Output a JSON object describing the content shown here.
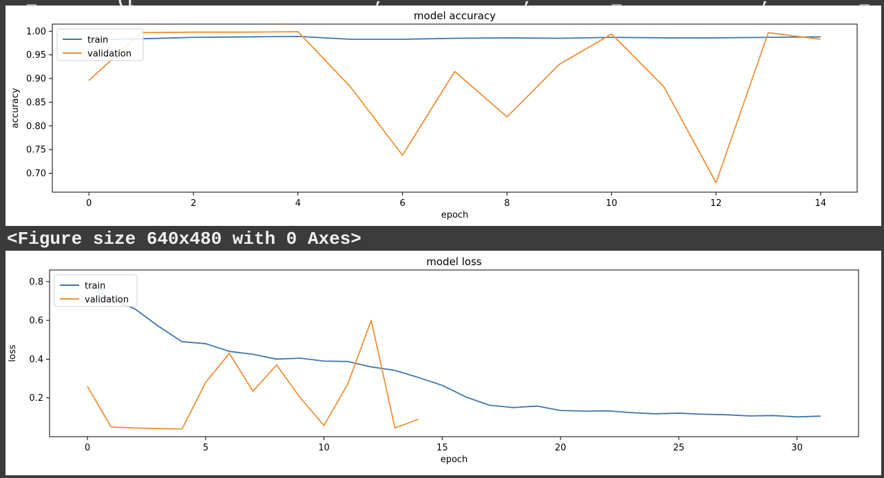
{
  "header": {
    "cropped_code": "  _        ([                        ,              ,        _              ,         _          ,                    _        ])"
  },
  "figure_text": "<Figure size 640x480 with 0 Axes>",
  "colors": {
    "train": "#3d76ab",
    "validation": "#ef8f35",
    "axis": "#000000"
  },
  "chart_data": [
    {
      "type": "line",
      "title": "model accuracy",
      "xlabel": "epoch",
      "ylabel": "accuracy",
      "xlim": [
        -0.7,
        14.7
      ],
      "ylim": [
        0.66,
        1.015
      ],
      "xticks": [
        0,
        2,
        4,
        6,
        8,
        10,
        12,
        14
      ],
      "yticks": [
        0.7,
        0.75,
        0.8,
        0.85,
        0.9,
        0.95,
        1.0
      ],
      "ytick_labels": [
        "0.70",
        "0.75",
        "0.80",
        "0.85",
        "0.90",
        "0.95",
        "1.00"
      ],
      "legend": [
        "train",
        "validation"
      ],
      "legend_loc": "upper left",
      "series": [
        {
          "name": "train",
          "x": [
            0,
            1,
            2,
            3,
            4,
            5,
            6,
            7,
            8,
            9,
            10,
            11,
            12,
            13,
            14
          ],
          "values": [
            0.982,
            0.984,
            0.987,
            0.988,
            0.989,
            0.983,
            0.983,
            0.985,
            0.986,
            0.985,
            0.987,
            0.986,
            0.986,
            0.987,
            0.988
          ]
        },
        {
          "name": "validation",
          "x": [
            0,
            1,
            2,
            3,
            4,
            5,
            6,
            7,
            8,
            9,
            10,
            11,
            12,
            13,
            14
          ],
          "values": [
            0.896,
            0.997,
            0.998,
            0.998,
            0.999,
            0.883,
            0.738,
            0.915,
            0.819,
            0.93,
            0.994,
            0.883,
            0.68,
            0.997,
            0.983
          ]
        }
      ]
    },
    {
      "type": "line",
      "title": "model loss",
      "xlabel": "epoch",
      "ylabel": "loss",
      "xlim": [
        -1.6,
        32.6
      ],
      "ylim": [
        0.0,
        0.86
      ],
      "xticks": [
        0,
        5,
        10,
        15,
        20,
        25,
        30
      ],
      "yticks": [
        0.2,
        0.4,
        0.6,
        0.8
      ],
      "ytick_labels": [
        "0.2",
        "0.4",
        "0.6",
        "0.8"
      ],
      "legend": [
        "train",
        "validation"
      ],
      "legend_loc": "upper left",
      "series": [
        {
          "name": "train",
          "x": [
            0,
            1,
            2,
            3,
            4,
            5,
            6,
            7,
            8,
            9,
            10,
            11,
            12,
            13,
            14,
            15,
            16,
            17,
            18,
            19,
            20,
            21,
            22,
            23,
            24,
            25,
            26,
            27,
            28,
            29,
            30,
            31
          ],
          "values": [
            0.78,
            0.71,
            0.66,
            0.57,
            0.49,
            0.48,
            0.44,
            0.425,
            0.4,
            0.405,
            0.39,
            0.388,
            0.36,
            0.342,
            0.305,
            0.265,
            0.205,
            0.162,
            0.15,
            0.158,
            0.135,
            0.132,
            0.133,
            0.124,
            0.118,
            0.121,
            0.116,
            0.113,
            0.107,
            0.109,
            0.102,
            0.106
          ]
        },
        {
          "name": "validation",
          "x": [
            0,
            1,
            2,
            3,
            4,
            5,
            6,
            7,
            8,
            9,
            10,
            11,
            12,
            13,
            14
          ],
          "values": [
            0.26,
            0.05,
            0.045,
            0.042,
            0.04,
            0.28,
            0.43,
            0.235,
            0.37,
            0.2,
            0.058,
            0.27,
            0.6,
            0.045,
            0.09
          ]
        }
      ]
    }
  ]
}
